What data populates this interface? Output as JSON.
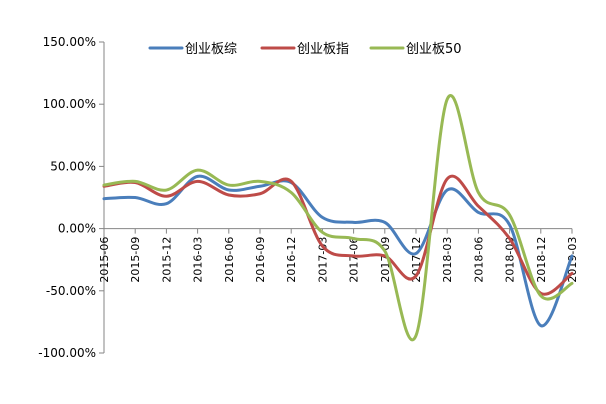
{
  "chart_data": {
    "type": "line",
    "title": "",
    "xlabel": "",
    "ylabel": "",
    "categories": [
      "2015-06",
      "2015-09",
      "2015-12",
      "2016-03",
      "2016-06",
      "2016-09",
      "2016-12",
      "2017-03",
      "2017-06",
      "2017-09",
      "2017-12",
      "2018-03",
      "2018-06",
      "2018-09",
      "2018-12",
      "2019-03"
    ],
    "ylim": [
      -100,
      150
    ],
    "yticks": [
      -100,
      -50,
      0,
      50,
      100,
      150
    ],
    "ytick_labels": [
      "-100.00%",
      "-50.00%",
      "0.00%",
      "50.00%",
      "100.00%",
      "150.00%"
    ],
    "y_unit": "%",
    "grid": false,
    "legend_position": "top",
    "series": [
      {
        "name": "创业板综",
        "color": "#4a7ebb",
        "values": [
          24,
          25,
          20,
          42,
          31,
          34,
          37,
          9,
          5,
          5,
          -20,
          31,
          13,
          3,
          -78,
          -22
        ]
      },
      {
        "name": "创业板指",
        "color": "#be4b48",
        "values": [
          34,
          37,
          26,
          38,
          27,
          28,
          38,
          -14,
          -22,
          -22,
          -38,
          40,
          18,
          -8,
          -52,
          -36
        ]
      },
      {
        "name": "创业板50",
        "color": "#98b954",
        "values": [
          35,
          38,
          31,
          47,
          35,
          38,
          29,
          -3,
          -8,
          -18,
          -86,
          104,
          29,
          11,
          -54,
          -44
        ]
      }
    ]
  }
}
